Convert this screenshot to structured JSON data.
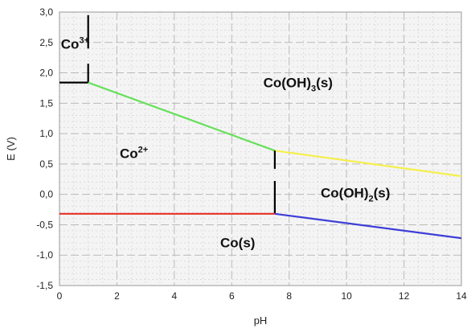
{
  "chart_data": {
    "type": "line",
    "xlabel": "pH",
    "ylabel": "E (V)",
    "xlim": [
      0,
      14
    ],
    "ylim": [
      -1.5,
      3.0
    ],
    "x_ticks": [
      "0",
      "2",
      "4",
      "6",
      "8",
      "10",
      "12",
      "14"
    ],
    "y_ticks": [
      "3,0",
      "2,5",
      "2,0",
      "1,5",
      "1,0",
      "0,5",
      "0,0",
      "-0,5",
      "-1,0",
      "-1,5"
    ],
    "grid": true,
    "series": [
      {
        "color": "#000000",
        "x": [
          0.0,
          1.0
        ],
        "y": [
          1.84,
          1.84
        ]
      },
      {
        "color": "#000000",
        "x": [
          1.0,
          1.0
        ],
        "y": [
          1.84,
          2.15
        ]
      },
      {
        "color": "#000000",
        "x": [
          1.0,
          1.0
        ],
        "y": [
          2.4,
          2.95
        ]
      },
      {
        "color": "#66e05a",
        "x": [
          1.0,
          7.5
        ],
        "y": [
          1.84,
          0.72
        ]
      },
      {
        "color": "#f5ef4f",
        "x": [
          7.5,
          14.0
        ],
        "y": [
          0.72,
          0.3
        ]
      },
      {
        "color": "#000000",
        "x": [
          7.5,
          7.5
        ],
        "y": [
          0.72,
          0.42
        ]
      },
      {
        "color": "#000000",
        "x": [
          7.5,
          7.5
        ],
        "y": [
          0.22,
          -0.32
        ]
      },
      {
        "color": "#e8312b",
        "x": [
          0.0,
          7.5
        ],
        "y": [
          -0.32,
          -0.32
        ]
      },
      {
        "color": "#3e3ed8",
        "x": [
          7.5,
          14.0
        ],
        "y": [
          -0.32,
          -0.72
        ]
      }
    ],
    "region_labels": [
      {
        "text": "Co",
        "sup": "3+",
        "sub": "",
        "tail": "",
        "x": 0.05,
        "y": 2.4
      },
      {
        "text": "Co",
        "sup": "2+",
        "sub": "",
        "tail": "",
        "x": 2.1,
        "y": 0.6
      },
      {
        "text": "Co(OH)",
        "sup": "",
        "sub": "3",
        "tail": "(s)",
        "x": 7.1,
        "y": 1.76
      },
      {
        "text": "Co(OH)",
        "sup": "",
        "sub": "2",
        "tail": "(s)",
        "x": 9.1,
        "y": -0.05
      },
      {
        "text": "Co(s)",
        "sup": "",
        "sub": "",
        "tail": "",
        "x": 5.6,
        "y": -0.87
      }
    ]
  }
}
